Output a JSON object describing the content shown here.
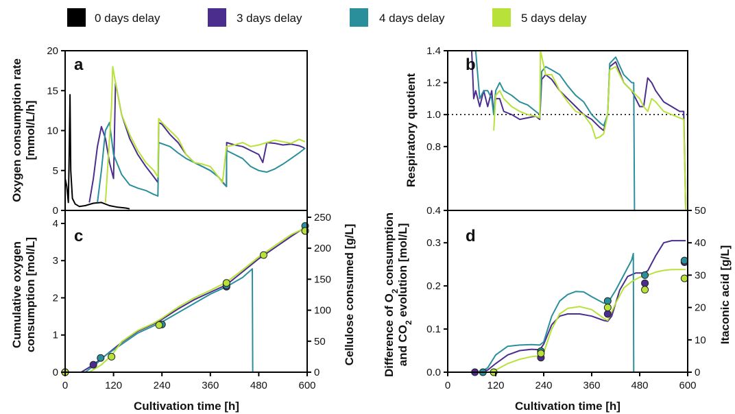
{
  "legend": [
    {
      "label": "0 days delay",
      "color": "#000000"
    },
    {
      "label": "3 days delay",
      "color": "#4a2d8c"
    },
    {
      "label": "4 days delay",
      "color": "#2a8f9b"
    },
    {
      "label": "5 days delay",
      "color": "#b8e23a"
    }
  ],
  "colors": {
    "d0": "#000000",
    "d3": "#4a2d8c",
    "d4": "#2a8f9b",
    "d5": "#b8e23a"
  },
  "chart_data": [
    {
      "id": "a",
      "type": "line",
      "panel_label": "a",
      "xlabel": "",
      "ylabel_lines": [
        "Oxygen consumption rate",
        "[mmol/L/h]"
      ],
      "xlim": [
        0,
        600
      ],
      "ylim": [
        0,
        20
      ],
      "yticks": [
        0,
        5,
        10,
        15,
        20
      ],
      "xticks": [],
      "series": [
        {
          "key": "d0",
          "x": [
            0,
            4,
            8,
            10,
            12,
            14,
            18,
            25,
            35,
            50,
            70,
            90,
            110,
            130,
            150,
            160
          ],
          "y": [
            4,
            3,
            1,
            7,
            14.5,
            5,
            1.5,
            0.8,
            0.5,
            0.6,
            0.9,
            1.0,
            0.6,
            0.4,
            0.3,
            0.2
          ]
        },
        {
          "key": "d3",
          "x": [
            60,
            70,
            80,
            90,
            100,
            110,
            120,
            125,
            140,
            160,
            180,
            200,
            220,
            230,
            232,
            240,
            260,
            280,
            300,
            320,
            340,
            360,
            380,
            390,
            400,
            400.5,
            420,
            440,
            460,
            480,
            490,
            500,
            520,
            540,
            560,
            580,
            590,
            595
          ],
          "y": [
            1,
            4,
            8,
            10.5,
            9,
            6,
            4,
            16,
            12,
            9,
            7,
            5.5,
            4.2,
            3.5,
            11,
            10.8,
            9.5,
            8.5,
            7,
            6,
            5.5,
            5,
            4.2,
            3.6,
            3,
            8.5,
            8.2,
            8,
            7.5,
            7,
            6,
            8.5,
            8.4,
            8.2,
            8.3,
            8.1,
            7.9,
            7.7
          ]
        },
        {
          "key": "d4",
          "x": [
            80,
            90,
            100,
            110,
            120,
            140,
            160,
            180,
            200,
            220,
            230,
            232,
            260,
            280,
            300,
            320,
            340,
            360,
            380,
            390,
            400,
            400.5,
            420,
            440,
            460,
            480,
            500,
            520,
            540,
            560,
            580,
            595
          ],
          "y": [
            1,
            5,
            10,
            11,
            7,
            4.5,
            3.2,
            2.8,
            2.5,
            2,
            1.8,
            8.5,
            8,
            7.2,
            6.5,
            6,
            5.5,
            5,
            4.2,
            3.5,
            3,
            7.5,
            7,
            6.5,
            5.5,
            5,
            4.8,
            5.2,
            5.8,
            6.5,
            7.2,
            7.8
          ]
        },
        {
          "key": "d5",
          "x": [
            100,
            110,
            115,
            118,
            125,
            140,
            160,
            180,
            200,
            220,
            230,
            232,
            240,
            260,
            280,
            300,
            320,
            340,
            360,
            380,
            390,
            400,
            420,
            440,
            460,
            480,
            500,
            520,
            540,
            560,
            580,
            595
          ],
          "y": [
            1,
            9,
            13,
            18,
            16,
            12,
            9.5,
            7.5,
            6,
            5,
            4.2,
            11.5,
            11,
            10,
            9,
            7,
            6,
            5.8,
            5.5,
            4.2,
            3.5,
            8,
            8.2,
            8.5,
            8,
            8.2,
            8.5,
            8.8,
            8.6,
            8.4,
            8.9,
            8.6
          ]
        }
      ]
    },
    {
      "id": "b",
      "type": "line",
      "panel_label": "b",
      "xlabel": "",
      "ylabel": "Respiratory quotient",
      "xlim": [
        0,
        600
      ],
      "ylim": [
        0.4,
        1.4
      ],
      "yticks": [
        0.4,
        0.8,
        1.0,
        1.2,
        1.4
      ],
      "reference_line": 1.0,
      "series": [
        {
          "key": "d3",
          "x": [
            60,
            65,
            70,
            80,
            90,
            100,
            110,
            115,
            120,
            130,
            140,
            160,
            180,
            200,
            220,
            230,
            235,
            245,
            260,
            280,
            300,
            320,
            340,
            360,
            380,
            390,
            400,
            405,
            420,
            440,
            460,
            470,
            480,
            490,
            500,
            510,
            520,
            540,
            560,
            580,
            590,
            595
          ],
          "y": [
            1.4,
            1.1,
            1.15,
            1.05,
            1.15,
            1.05,
            1.15,
            1.0,
            1.1,
            1.1,
            1.02,
            1.0,
            0.97,
            0.98,
            0.99,
            0.97,
            1.22,
            1.25,
            1.22,
            1.15,
            1.1,
            1.05,
            1.0,
            0.97,
            0.92,
            0.9,
            1.0,
            1.3,
            1.33,
            1.2,
            1.15,
            1.1,
            1.05,
            1.05,
            1.23,
            1.2,
            1.15,
            1.08,
            1.05,
            1.02,
            1.02,
            0.4
          ]
        },
        {
          "key": "d4",
          "x": [
            70,
            80,
            90,
            100,
            110,
            115,
            120,
            130,
            140,
            160,
            180,
            200,
            220,
            230,
            235,
            245,
            260,
            280,
            300,
            320,
            340,
            360,
            380,
            390,
            400,
            405,
            420,
            440,
            460,
            465,
            467
          ],
          "y": [
            1.4,
            1.1,
            1.15,
            1.15,
            1.1,
            1.0,
            1.15,
            1.2,
            1.15,
            1.12,
            1.08,
            1.06,
            1.02,
            1.0,
            1.27,
            1.3,
            1.28,
            1.25,
            1.18,
            1.12,
            1.08,
            1.0,
            0.95,
            0.93,
            1.0,
            1.32,
            1.36,
            1.25,
            1.2,
            1.2,
            0.4
          ]
        },
        {
          "key": "d5",
          "x": [
            115,
            120,
            130,
            140,
            160,
            180,
            200,
            220,
            230,
            232,
            245,
            260,
            280,
            300,
            320,
            340,
            360,
            370,
            380,
            390,
            400,
            405,
            420,
            440,
            460,
            480,
            490,
            500,
            510,
            520,
            540,
            560,
            580,
            590,
            595
          ],
          "y": [
            0.9,
            1.12,
            1.15,
            1.1,
            1.05,
            1.02,
            1.0,
            0.99,
            0.98,
            1.4,
            1.25,
            1.25,
            1.15,
            1.08,
            1.02,
            1.0,
            0.93,
            0.85,
            0.86,
            0.88,
            1.0,
            1.28,
            1.3,
            1.2,
            1.15,
            1.1,
            1.05,
            1.02,
            1.1,
            1.08,
            1.02,
            1.0,
            0.98,
            0.97,
            0.4
          ]
        }
      ]
    },
    {
      "id": "c",
      "type": "line",
      "panel_label": "c",
      "xlabel": "Cultivation time [h]",
      "ylabel_lines": [
        "Cumulative oxygen",
        "consumption [mol/L]"
      ],
      "y2label": "Cellulose consumed [g/L]",
      "xlim": [
        0,
        600
      ],
      "ylim": [
        0,
        4.35
      ],
      "y2lim": [
        0,
        261
      ],
      "xticks": [
        0,
        120,
        240,
        360,
        480,
        600
      ],
      "yticks": [
        0,
        1,
        2,
        3,
        4
      ],
      "y2ticks": [
        0,
        50,
        100,
        150,
        200,
        250
      ],
      "series": [
        {
          "key": "d3",
          "x": [
            0,
            40,
            70,
            100,
            140,
            180,
            220,
            240,
            280,
            320,
            360,
            400,
            440,
            480,
            520,
            560,
            595
          ],
          "y": [
            0,
            0,
            0.2,
            0.45,
            0.8,
            1.1,
            1.3,
            1.42,
            1.7,
            1.95,
            2.15,
            2.35,
            2.7,
            3.05,
            3.35,
            3.65,
            3.9
          ]
        },
        {
          "key": "d4",
          "x": [
            0,
            50,
            80,
            100,
            140,
            180,
            220,
            240,
            280,
            320,
            360,
            400,
            440,
            464,
            465,
            466,
            600
          ],
          "y": [
            0,
            0,
            0.25,
            0.45,
            0.75,
            1.05,
            1.25,
            1.35,
            1.6,
            1.85,
            2.1,
            2.3,
            2.55,
            2.78,
            0,
            0,
            0
          ]
        },
        {
          "key": "d5",
          "x": [
            0,
            60,
            90,
            115,
            140,
            180,
            220,
            240,
            280,
            320,
            360,
            400,
            440,
            480,
            520,
            560,
            595
          ],
          "y": [
            0,
            0,
            0.2,
            0.45,
            0.82,
            1.12,
            1.32,
            1.45,
            1.75,
            2.0,
            2.2,
            2.42,
            2.75,
            3.1,
            3.4,
            3.7,
            3.88
          ]
        }
      ],
      "points": [
        {
          "key": "d3",
          "x": [
            0,
            70,
            400,
            595
          ],
          "y2": [
            0,
            12,
            138,
            228
          ]
        },
        {
          "key": "d4",
          "x": [
            0,
            88,
            240,
            400,
            595
          ],
          "y2": [
            0,
            23,
            77,
            140,
            236
          ]
        },
        {
          "key": "d5",
          "x": [
            0,
            115,
            233,
            400,
            492,
            595
          ],
          "y2": [
            0,
            25,
            76,
            144,
            189,
            228
          ]
        }
      ]
    },
    {
      "id": "d",
      "type": "line",
      "panel_label": "d",
      "xlabel": "Cultivation time [h]",
      "ylabel_lines": [
        "Difference of O",
        "and CO",
        " evolution [mol/L]"
      ],
      "ylabel_line1_pre": "Difference of O",
      "ylabel_line1_sub": "2",
      "ylabel_line1_post": " consumption",
      "ylabel_line2_pre": "and CO",
      "ylabel_line2_sub": "2",
      "ylabel_line2_post": " evolution [mol/L]",
      "y2label": "Itaconic acid [g/L]",
      "xlim": [
        0,
        600
      ],
      "ylim": [
        0,
        0.375
      ],
      "y2lim": [
        0,
        50
      ],
      "xticks": [
        0,
        120,
        240,
        360,
        480,
        600
      ],
      "yticks": [
        0.0,
        0.1,
        0.2,
        0.3
      ],
      "y2ticks": [
        0,
        10,
        20,
        30,
        40,
        50
      ],
      "series": [
        {
          "key": "d3",
          "x": [
            60,
            80,
            100,
            120,
            150,
            180,
            210,
            230,
            240,
            260,
            280,
            300,
            330,
            360,
            390,
            400,
            410,
            430,
            450,
            470,
            490,
            500,
            520,
            540,
            560,
            580,
            595
          ],
          "y": [
            0,
            0,
            0.005,
            0.02,
            0.04,
            0.05,
            0.053,
            0.052,
            0.065,
            0.11,
            0.13,
            0.135,
            0.135,
            0.13,
            0.12,
            0.118,
            0.13,
            0.19,
            0.222,
            0.23,
            0.23,
            0.235,
            0.27,
            0.3,
            0.305,
            0.305,
            0.305
          ]
        },
        {
          "key": "d4",
          "x": [
            80,
            100,
            120,
            150,
            180,
            210,
            230,
            240,
            260,
            280,
            300,
            320,
            340,
            360,
            390,
            400,
            420,
            440,
            460,
            464,
            465,
            466
          ],
          "y": [
            0,
            0.01,
            0.04,
            0.06,
            0.063,
            0.064,
            0.063,
            0.07,
            0.13,
            0.165,
            0.18,
            0.187,
            0.186,
            0.175,
            0.16,
            0.16,
            0.19,
            0.225,
            0.26,
            0.275,
            0,
            0
          ]
        },
        {
          "key": "d5",
          "x": [
            110,
            130,
            150,
            180,
            210,
            230,
            240,
            260,
            280,
            300,
            330,
            360,
            390,
            400,
            420,
            440,
            460,
            480,
            500,
            520,
            540,
            560,
            580,
            595
          ],
          "y": [
            0,
            0.01,
            0.02,
            0.03,
            0.036,
            0.038,
            0.045,
            0.1,
            0.135,
            0.148,
            0.152,
            0.145,
            0.125,
            0.12,
            0.16,
            0.195,
            0.21,
            0.22,
            0.225,
            0.232,
            0.236,
            0.238,
            0.238,
            0.238
          ]
        }
      ],
      "points": [
        {
          "key": "d3",
          "x": [
            68,
            233,
            400,
            493,
            592
          ],
          "y2": [
            0,
            4.5,
            18,
            27.5,
            34
          ]
        },
        {
          "key": "d4",
          "x": [
            88,
            233,
            400,
            493,
            592
          ],
          "y2": [
            0,
            6.5,
            22,
            30,
            34.5
          ]
        },
        {
          "key": "d5",
          "x": [
            115,
            233,
            400,
            493,
            592
          ],
          "y2": [
            0,
            5.8,
            20,
            25.5,
            29
          ]
        }
      ]
    }
  ]
}
